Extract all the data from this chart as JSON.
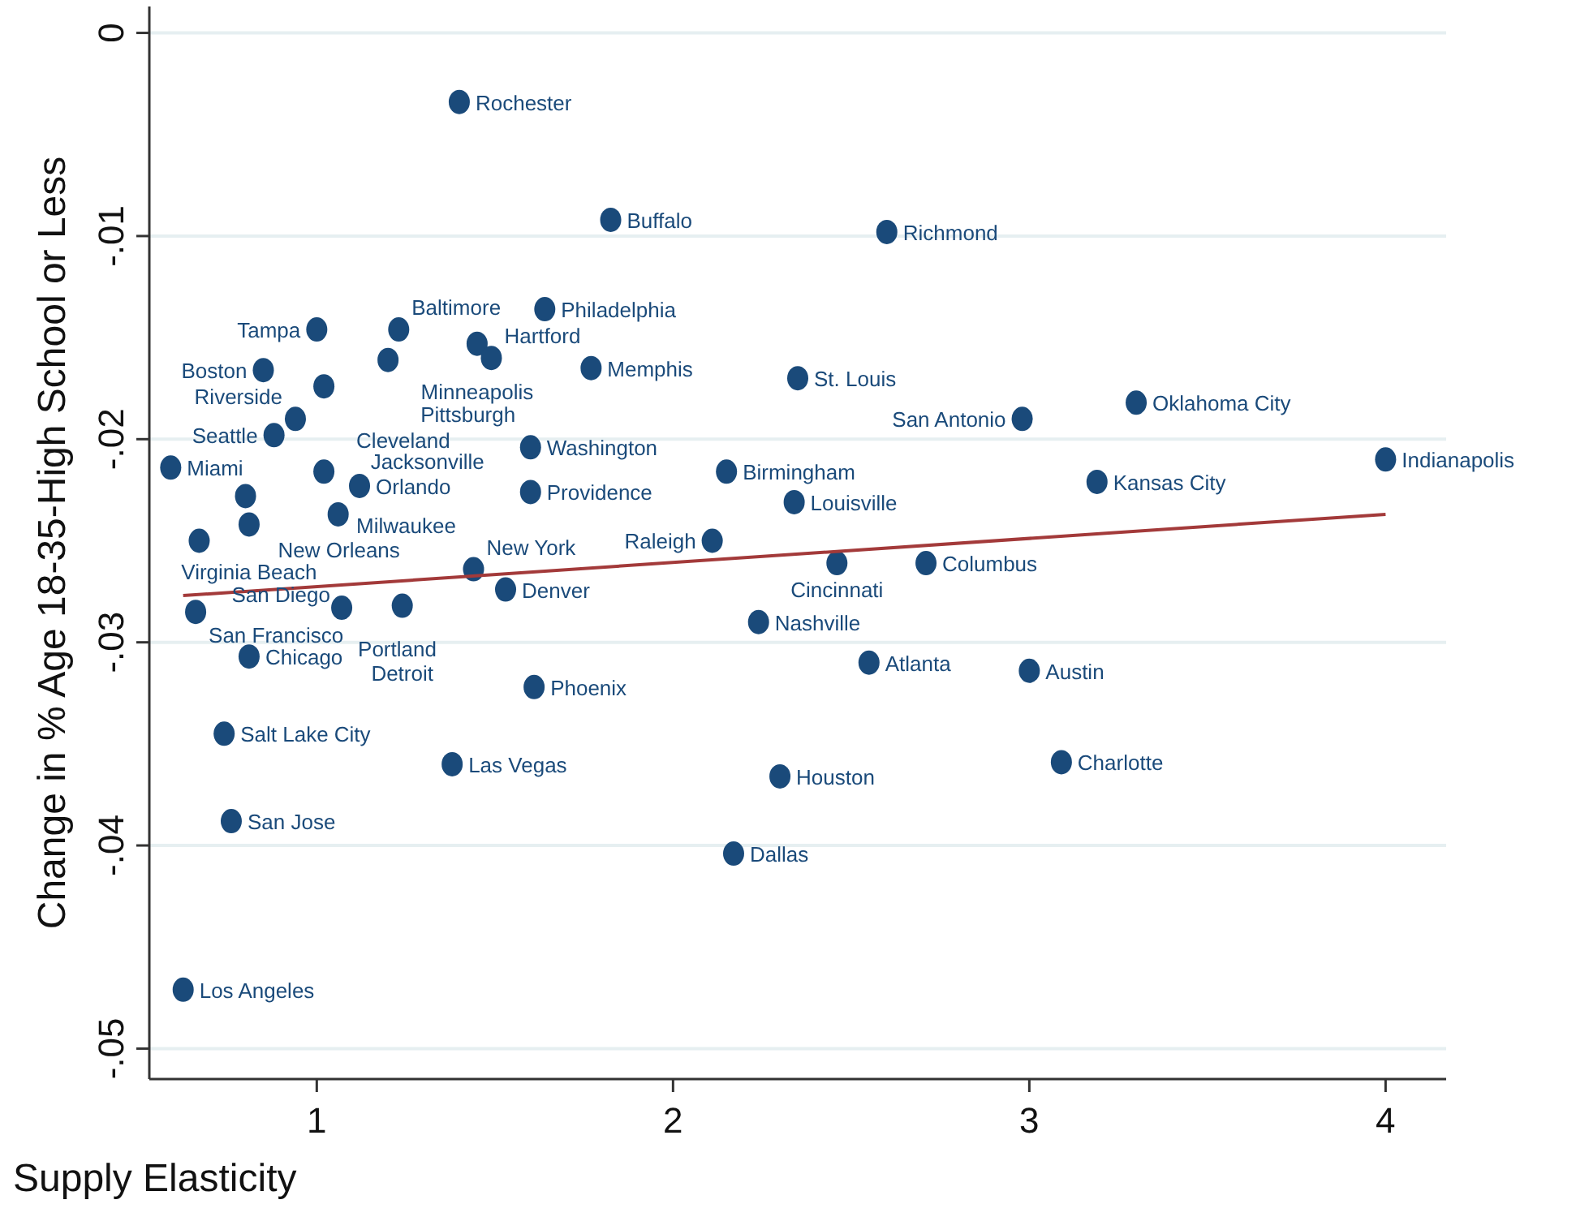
{
  "chart_data": {
    "type": "scatter",
    "xlabel": "Supply Elasticity",
    "ylabel": "Change in % Age 18-35-High School or Less",
    "xlim": [
      0.53,
      4.17
    ],
    "ylim": [
      -0.0515,
      0.0013
    ],
    "xticks": [
      1,
      2,
      3,
      4
    ],
    "yticks": [
      {
        "value": 0,
        "label": "0"
      },
      {
        "value": -0.01,
        "label": "-.01"
      },
      {
        "value": -0.02,
        "label": "-.02"
      },
      {
        "value": -0.03,
        "label": "-.03"
      },
      {
        "value": -0.04,
        "label": "-.04"
      },
      {
        "value": -0.05,
        "label": "-.05"
      }
    ],
    "grid": "y",
    "series": [
      {
        "marker": "circle",
        "color": "#1a4a7a",
        "x": [
          1.4,
          1.825,
          2.6,
          1.64,
          1.0,
          1.23,
          1.45,
          1.49,
          1.2,
          1.77,
          0.85,
          2.35,
          1.02,
          3.3,
          0.94,
          2.98,
          0.88,
          1.6,
          0.59,
          1.02,
          2.15,
          4.0,
          3.19,
          1.12,
          0.8,
          1.6,
          2.34,
          1.06,
          0.81,
          0.67,
          2.11,
          1.44,
          2.46,
          2.71,
          1.53,
          0.66,
          1.07,
          1.24,
          2.24,
          0.81,
          2.55,
          3.0,
          1.61,
          0.74,
          1.38,
          3.09,
          2.3,
          0.76,
          2.17,
          0.625
        ],
        "values": [
          -0.0034,
          -0.0092,
          -0.0098,
          -0.0136,
          -0.0146,
          -0.0146,
          -0.0153,
          -0.016,
          -0.0161,
          -0.0165,
          -0.0166,
          -0.017,
          -0.0174,
          -0.0182,
          -0.019,
          -0.019,
          -0.0198,
          -0.0204,
          -0.0214,
          -0.0216,
          -0.0216,
          -0.021,
          -0.0221,
          -0.0223,
          -0.0228,
          -0.0226,
          -0.0231,
          -0.0237,
          -0.0242,
          -0.025,
          -0.025,
          -0.0264,
          -0.0261,
          -0.0261,
          -0.0274,
          -0.0285,
          -0.0283,
          -0.0282,
          -0.029,
          -0.0307,
          -0.031,
          -0.0314,
          -0.0322,
          -0.0345,
          -0.036,
          -0.0359,
          -0.0366,
          -0.0388,
          -0.0404,
          -0.0471
        ]
      },
      {
        "type": "line",
        "marker": "none",
        "color": "#a33a3a",
        "x": [
          0.625,
          4.0
        ],
        "values": [
          -0.0277,
          -0.0237
        ]
      }
    ],
    "annotations": [
      {
        "text": "Rochester",
        "x": 1.4,
        "y": -0.0034
      },
      {
        "text": "Buffalo",
        "x": 1.825,
        "y": -0.0092
      },
      {
        "text": "Richmond",
        "x": 2.6,
        "y": -0.0098
      },
      {
        "text": "Philadelphia",
        "x": 1.64,
        "y": -0.0136
      },
      {
        "text": "Tampa",
        "x": 1.0,
        "y": -0.0146
      },
      {
        "text": "Baltimore",
        "x": 1.23,
        "y": -0.0146
      },
      {
        "text": "Minneapolis",
        "x": 1.45,
        "y": -0.0153
      },
      {
        "text": "Hartford",
        "x": 1.49,
        "y": -0.016
      },
      {
        "text": "Pittsburgh",
        "x": 1.2,
        "y": -0.0161
      },
      {
        "text": "Memphis",
        "x": 1.77,
        "y": -0.0165
      },
      {
        "text": "Boston",
        "x": 0.85,
        "y": -0.0166
      },
      {
        "text": "St. Louis",
        "x": 2.35,
        "y": -0.017
      },
      {
        "text": "Cleveland",
        "x": 1.02,
        "y": -0.0174
      },
      {
        "text": "Oklahoma City",
        "x": 3.3,
        "y": -0.0182
      },
      {
        "text": "Riverside",
        "x": 0.94,
        "y": -0.019
      },
      {
        "text": "San Antonio",
        "x": 2.98,
        "y": -0.019
      },
      {
        "text": "Seattle",
        "x": 0.88,
        "y": -0.0198
      },
      {
        "text": "Washington",
        "x": 1.6,
        "y": -0.0204
      },
      {
        "text": "Miami",
        "x": 0.59,
        "y": -0.0214
      },
      {
        "text": "Milwaukee",
        "x": 1.02,
        "y": -0.0216
      },
      {
        "text": "Birmingham",
        "x": 2.15,
        "y": -0.0216
      },
      {
        "text": "Indianapolis",
        "x": 4.0,
        "y": -0.021
      },
      {
        "text": "Kansas City",
        "x": 3.19,
        "y": -0.0221
      },
      {
        "text": "Orlando",
        "x": 1.12,
        "y": -0.0223
      },
      {
        "text": "New Orleans",
        "x": 0.8,
        "y": -0.0228
      },
      {
        "text": "Providence",
        "x": 1.6,
        "y": -0.0226
      },
      {
        "text": "Louisville",
        "x": 2.34,
        "y": -0.0231
      },
      {
        "text": "Jacksonville",
        "x": 1.06,
        "y": -0.0237
      },
      {
        "text": "Virginia Beach",
        "x": 0.81,
        "y": -0.0242
      },
      {
        "text": "San Diego",
        "x": 0.67,
        "y": -0.025
      },
      {
        "text": "Raleigh",
        "x": 2.11,
        "y": -0.025
      },
      {
        "text": "New York",
        "x": 1.44,
        "y": -0.0264
      },
      {
        "text": "Cincinnati",
        "x": 2.46,
        "y": -0.0261
      },
      {
        "text": "Columbus",
        "x": 2.71,
        "y": -0.0261
      },
      {
        "text": "Denver",
        "x": 1.53,
        "y": -0.0274
      },
      {
        "text": "San Francisco",
        "x": 0.66,
        "y": -0.0285
      },
      {
        "text": "Portland",
        "x": 1.07,
        "y": -0.0283
      },
      {
        "text": "Detroit",
        "x": 1.24,
        "y": -0.0282
      },
      {
        "text": "Nashville",
        "x": 2.24,
        "y": -0.029
      },
      {
        "text": "Chicago",
        "x": 0.81,
        "y": -0.0307
      },
      {
        "text": "Atlanta",
        "x": 2.55,
        "y": -0.031
      },
      {
        "text": "Austin",
        "x": 3.0,
        "y": -0.0314
      },
      {
        "text": "Phoenix",
        "x": 1.61,
        "y": -0.0322
      },
      {
        "text": "Salt Lake City",
        "x": 0.74,
        "y": -0.0345
      },
      {
        "text": "Las Vegas",
        "x": 1.38,
        "y": -0.036
      },
      {
        "text": "Charlotte",
        "x": 3.09,
        "y": -0.0359
      },
      {
        "text": "Houston",
        "x": 2.3,
        "y": -0.0366
      },
      {
        "text": "San Jose",
        "x": 0.76,
        "y": -0.0388
      },
      {
        "text": "Dallas",
        "x": 2.17,
        "y": -0.0404
      },
      {
        "text": "Los Angeles",
        "x": 0.625,
        "y": -0.0471
      }
    ]
  }
}
